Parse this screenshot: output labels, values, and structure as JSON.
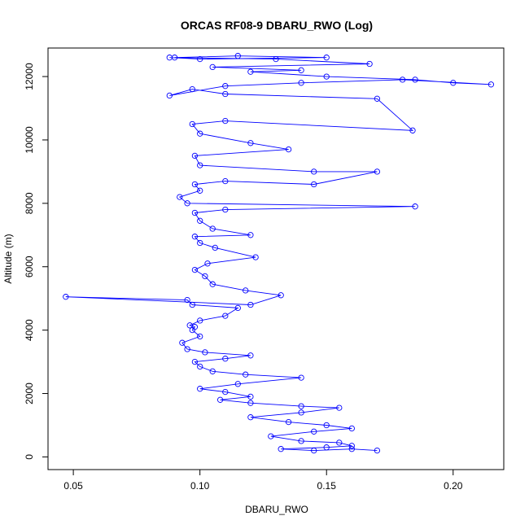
{
  "chart_data": {
    "type": "line",
    "title": "ORCAS RF08-9 DBARU_RWO (Log)",
    "xlabel": "DBARU_RWO",
    "ylabel": "Altitude (m)",
    "xlim": [
      0.04,
      0.22
    ],
    "ylim": [
      -400,
      12900
    ],
    "x_ticks": [
      0.05,
      0.1,
      0.15,
      0.2
    ],
    "x_tick_labels": [
      "0.05",
      "0.10",
      "0.15",
      "0.20"
    ],
    "y_ticks": [
      0,
      2000,
      4000,
      6000,
      8000,
      10000,
      12000
    ],
    "y_tick_labels": [
      "0",
      "2000",
      "4000",
      "6000",
      "8000",
      "10000",
      "12000"
    ],
    "grid": false,
    "series": [
      {
        "color": "#0000ff",
        "marker": "open-circle",
        "points": [
          [
            0.17,
            200
          ],
          [
            0.16,
            250
          ],
          [
            0.145,
            200
          ],
          [
            0.132,
            250
          ],
          [
            0.15,
            300
          ],
          [
            0.16,
            350
          ],
          [
            0.155,
            450
          ],
          [
            0.14,
            500
          ],
          [
            0.128,
            650
          ],
          [
            0.145,
            800
          ],
          [
            0.16,
            900
          ],
          [
            0.15,
            1000
          ],
          [
            0.135,
            1100
          ],
          [
            0.12,
            1250
          ],
          [
            0.14,
            1400
          ],
          [
            0.155,
            1550
          ],
          [
            0.14,
            1600
          ],
          [
            0.12,
            1700
          ],
          [
            0.108,
            1800
          ],
          [
            0.12,
            1900
          ],
          [
            0.11,
            2050
          ],
          [
            0.1,
            2150
          ],
          [
            0.115,
            2300
          ],
          [
            0.14,
            2500
          ],
          [
            0.118,
            2600
          ],
          [
            0.105,
            2700
          ],
          [
            0.1,
            2850
          ],
          [
            0.098,
            3000
          ],
          [
            0.11,
            3100
          ],
          [
            0.12,
            3200
          ],
          [
            0.102,
            3300
          ],
          [
            0.095,
            3400
          ],
          [
            0.093,
            3600
          ],
          [
            0.1,
            3800
          ],
          [
            0.097,
            4000
          ],
          [
            0.098,
            4100
          ],
          [
            0.096,
            4150
          ],
          [
            0.1,
            4300
          ],
          [
            0.11,
            4450
          ],
          [
            0.115,
            4700
          ],
          [
            0.097,
            4800
          ],
          [
            0.095,
            4950
          ],
          [
            0.047,
            5050
          ],
          [
            0.12,
            4800
          ],
          [
            0.132,
            5100
          ],
          [
            0.118,
            5250
          ],
          [
            0.105,
            5450
          ],
          [
            0.102,
            5700
          ],
          [
            0.098,
            5900
          ],
          [
            0.103,
            6100
          ],
          [
            0.122,
            6300
          ],
          [
            0.106,
            6600
          ],
          [
            0.1,
            6750
          ],
          [
            0.098,
            6950
          ],
          [
            0.12,
            7000
          ],
          [
            0.105,
            7200
          ],
          [
            0.1,
            7450
          ],
          [
            0.098,
            7700
          ],
          [
            0.11,
            7800
          ],
          [
            0.185,
            7900
          ],
          [
            0.095,
            8000
          ],
          [
            0.092,
            8200
          ],
          [
            0.1,
            8400
          ],
          [
            0.098,
            8600
          ],
          [
            0.11,
            8700
          ],
          [
            0.145,
            8600
          ],
          [
            0.17,
            9000
          ],
          [
            0.145,
            9000
          ],
          [
            0.1,
            9200
          ],
          [
            0.098,
            9500
          ],
          [
            0.135,
            9700
          ],
          [
            0.12,
            9900
          ],
          [
            0.1,
            10200
          ],
          [
            0.097,
            10500
          ],
          [
            0.11,
            10600
          ],
          [
            0.184,
            10300
          ],
          [
            0.17,
            11300
          ],
          [
            0.11,
            11450
          ],
          [
            0.097,
            11600
          ],
          [
            0.088,
            11400
          ],
          [
            0.11,
            11700
          ],
          [
            0.14,
            11800
          ],
          [
            0.18,
            11900
          ],
          [
            0.215,
            11750
          ],
          [
            0.2,
            11800
          ],
          [
            0.185,
            11900
          ],
          [
            0.15,
            12000
          ],
          [
            0.12,
            12150
          ],
          [
            0.14,
            12200
          ],
          [
            0.105,
            12300
          ],
          [
            0.167,
            12400
          ],
          [
            0.13,
            12550
          ],
          [
            0.09,
            12600
          ],
          [
            0.115,
            12650
          ],
          [
            0.15,
            12600
          ],
          [
            0.1,
            12550
          ],
          [
            0.088,
            12600
          ]
        ]
      }
    ]
  }
}
